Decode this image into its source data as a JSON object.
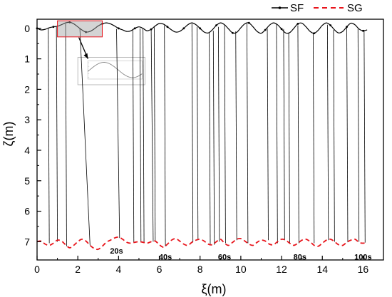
{
  "chart_data": {
    "type": "line",
    "xlabel": "ξ(m)",
    "ylabel": "ζ(m)",
    "xlim": [
      0,
      17
    ],
    "ylim": [
      7.6,
      -0.3
    ],
    "y_inverted": true,
    "x_ticks": [
      "0",
      "2",
      "4",
      "6",
      "8",
      "10",
      "12",
      "14",
      "16"
    ],
    "y_ticks": [
      "0",
      "1",
      "2",
      "3",
      "4",
      "5",
      "6",
      "7"
    ],
    "x_tick_values": [
      0,
      2,
      4,
      6,
      8,
      10,
      12,
      14,
      16
    ],
    "y_tick_values": [
      0,
      1,
      2,
      3,
      4,
      5,
      6,
      7
    ],
    "legend": {
      "position": "top-right"
    },
    "series": [
      {
        "name": "SF",
        "color": "#000000",
        "style": "solid-with-points",
        "x": [
          0.0,
          0.2,
          0.4,
          0.6,
          0.8,
          1.0,
          1.2,
          1.4,
          1.6,
          1.8,
          2.0,
          2.2,
          2.4,
          2.6,
          2.8,
          3.0,
          3.2,
          3.4,
          3.6,
          3.8,
          4.0,
          4.2,
          4.4,
          4.6,
          4.8,
          5.0,
          5.2,
          5.4,
          5.6,
          5.8,
          6.0,
          6.2,
          6.4,
          6.6,
          6.8,
          7.0,
          7.2,
          7.4,
          7.6,
          7.8,
          8.0,
          8.2,
          8.4,
          8.6,
          8.8,
          9.0,
          9.2,
          9.4,
          9.6,
          9.8,
          10.0,
          10.2,
          10.4,
          10.6,
          10.8,
          11.0,
          11.2,
          11.4,
          11.6,
          11.8,
          12.0,
          12.2,
          12.4,
          12.6,
          12.8,
          13.0,
          13.2,
          13.4,
          13.6,
          13.8,
          14.0,
          14.2,
          14.4,
          14.6,
          14.8,
          15.0,
          15.2,
          15.4,
          15.6,
          15.8,
          16.0,
          16.2
        ],
        "y": [
          0.0,
          0.05,
          0.03,
          -0.02,
          -0.05,
          -0.07,
          -0.12,
          -0.18,
          -0.2,
          -0.15,
          -0.05,
          0.05,
          0.12,
          0.1,
          0.02,
          -0.08,
          -0.15,
          -0.18,
          -0.15,
          -0.08,
          0.0,
          0.05,
          0.1,
          0.08,
          0.0,
          -0.05,
          0.0,
          0.08,
          0.03,
          -0.08,
          -0.16,
          -0.14,
          -0.05,
          0.05,
          0.12,
          0.1,
          0.0,
          -0.12,
          -0.18,
          -0.12,
          0.0,
          0.12,
          0.15,
          0.05,
          -0.1,
          -0.18,
          -0.12,
          0.02,
          0.15,
          0.13,
          -0.02,
          -0.15,
          -0.18,
          -0.05,
          0.1,
          0.16,
          0.05,
          -0.1,
          -0.18,
          -0.12,
          0.02,
          0.15,
          0.14,
          0.0,
          -0.15,
          -0.17,
          -0.05,
          0.1,
          0.16,
          0.06,
          -0.1,
          -0.18,
          -0.1,
          0.05,
          0.15,
          0.1,
          -0.05,
          -0.17,
          -0.12,
          0.02,
          0.08,
          0.05
        ]
      },
      {
        "name": "SG",
        "color": "#e8141b",
        "style": "dashed",
        "x": [
          0.0,
          0.2,
          0.4,
          0.6,
          0.8,
          1.0,
          1.2,
          1.4,
          1.6,
          1.8,
          2.0,
          2.2,
          2.4,
          2.6,
          2.8,
          3.0,
          3.2,
          3.4,
          3.6,
          3.8,
          4.0,
          4.2,
          4.4,
          4.6,
          4.8,
          5.0,
          5.2,
          5.4,
          5.6,
          5.8,
          6.0,
          6.2,
          6.4,
          6.6,
          6.8,
          7.0,
          7.2,
          7.4,
          7.6,
          7.8,
          8.0,
          8.2,
          8.4,
          8.6,
          8.8,
          9.0,
          9.2,
          9.4,
          9.6,
          9.8,
          10.0,
          10.2,
          10.4,
          10.6,
          10.8,
          11.0,
          11.2,
          11.4,
          11.6,
          11.8,
          12.0,
          12.2,
          12.4,
          12.6,
          12.8,
          13.0,
          13.2,
          13.4,
          13.6,
          13.8,
          14.0,
          14.2,
          14.4,
          14.6,
          14.8,
          15.0,
          15.2,
          15.4,
          15.6,
          15.8,
          16.0,
          16.2
        ],
        "y": [
          7.0,
          6.98,
          7.08,
          7.12,
          7.05,
          6.95,
          6.98,
          7.1,
          7.2,
          7.12,
          7.0,
          6.92,
          6.98,
          7.12,
          7.22,
          7.25,
          7.15,
          7.02,
          6.95,
          6.88,
          6.85,
          6.92,
          7.02,
          7.05,
          7.02,
          7.0,
          7.02,
          7.05,
          7.0,
          6.98,
          7.1,
          7.18,
          7.08,
          6.95,
          6.9,
          6.98,
          7.08,
          7.12,
          7.02,
          6.95,
          6.92,
          6.98,
          7.08,
          7.1,
          7.0,
          6.92,
          7.05,
          7.12,
          7.02,
          6.92,
          6.9,
          6.98,
          7.08,
          7.12,
          7.02,
          6.95,
          6.98,
          7.08,
          7.1,
          7.0,
          6.92,
          6.95,
          7.05,
          7.12,
          7.05,
          6.95,
          6.92,
          7.0,
          7.12,
          7.15,
          7.05,
          6.95,
          6.92,
          7.0,
          7.1,
          7.12,
          7.02,
          6.95,
          6.92,
          7.02,
          7.05,
          7.02
        ]
      }
    ],
    "connectors": [
      [
        0.55,
        0.0,
        0.6,
        7.05
      ],
      [
        0.95,
        -0.05,
        1.0,
        7.0
      ],
      [
        1.4,
        -0.15,
        1.45,
        7.15
      ],
      [
        2.1,
        0.0,
        2.6,
        7.12
      ],
      [
        3.9,
        0.02,
        4.05,
        6.88
      ],
      [
        4.7,
        0.05,
        4.75,
        7.02
      ],
      [
        5.05,
        0.0,
        5.1,
        7.02
      ],
      [
        5.2,
        0.0,
        5.25,
        7.03
      ],
      [
        5.6,
        0.0,
        5.7,
        7.0
      ],
      [
        5.75,
        -0.05,
        5.8,
        7.0
      ],
      [
        6.25,
        -0.1,
        6.3,
        7.15
      ],
      [
        7.6,
        -0.15,
        7.65,
        7.02
      ],
      [
        7.85,
        -0.05,
        7.9,
        6.95
      ],
      [
        8.45,
        0.15,
        8.5,
        7.08
      ],
      [
        8.65,
        0.08,
        8.7,
        7.1
      ],
      [
        8.9,
        -0.05,
        8.95,
        7.0
      ],
      [
        9.2,
        -0.1,
        9.25,
        7.05
      ],
      [
        9.75,
        0.1,
        9.8,
        6.95
      ],
      [
        10.3,
        -0.15,
        10.35,
        7.05
      ],
      [
        11.3,
        0.0,
        11.35,
        6.95
      ],
      [
        11.75,
        -0.15,
        11.8,
        7.05
      ],
      [
        12.1,
        0.02,
        12.15,
        6.95
      ],
      [
        12.35,
        0.14,
        12.4,
        7.05
      ],
      [
        12.8,
        -0.1,
        12.85,
        7.05
      ],
      [
        13.55,
        0.15,
        13.6,
        7.05
      ],
      [
        14.25,
        -0.12,
        14.3,
        6.95
      ],
      [
        14.55,
        0.05,
        14.6,
        7.0
      ],
      [
        15.2,
        -0.05,
        15.25,
        7.02
      ],
      [
        15.75,
        0.02,
        15.8,
        7.0
      ],
      [
        16.05,
        0.05,
        16.1,
        7.03
      ]
    ],
    "annotations": [
      {
        "text": "20s",
        "x": 3.9,
        "y": 7.3
      },
      {
        "text": "40s",
        "x": 6.3,
        "y": 7.5
      },
      {
        "text": "60s",
        "x": 9.2,
        "y": 7.5
      },
      {
        "text": "80s",
        "x": 12.9,
        "y": 7.5
      },
      {
        "text": "100s",
        "x": 16.0,
        "y": 7.5
      }
    ],
    "zoom_box": {
      "x0": 1.0,
      "x1": 3.2,
      "y0": -0.25,
      "y1": 0.28
    },
    "inset": {
      "x0": 2.0,
      "x1": 5.3,
      "y0": 0.95,
      "y1": 1.85,
      "curve_color": "#888888"
    }
  }
}
